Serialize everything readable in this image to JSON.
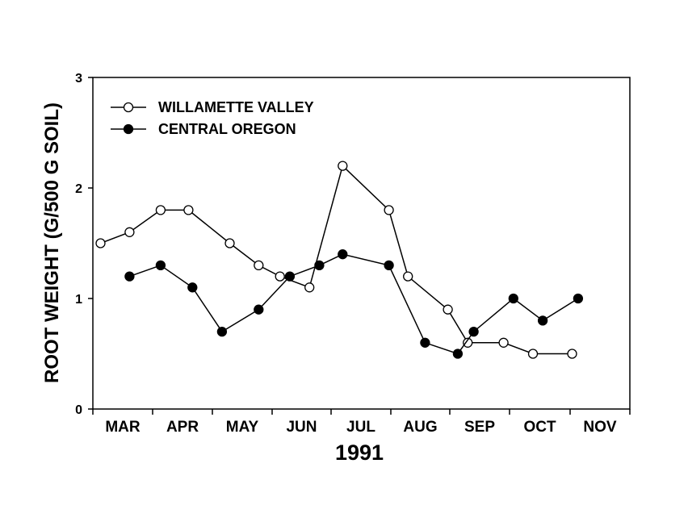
{
  "chart_data": {
    "type": "line",
    "title": "",
    "xlabel": "1991",
    "ylabel": "ROOT WEIGHT (G/500 G SOIL)",
    "ylim": [
      0,
      3
    ],
    "yticks": [
      0,
      1,
      2,
      3
    ],
    "month_labels": [
      "MAR",
      "APR",
      "MAY",
      "JUN",
      "JUL",
      "AUG",
      "SEP",
      "OCT",
      "NOV"
    ],
    "grid": false,
    "legend_position": "top-left",
    "series": [
      {
        "name": "WILLAMETTE VALLEY",
        "marker": "open-circle",
        "points": [
          {
            "x": "1991-03-05",
            "y": 1.5
          },
          {
            "x": "1991-03-20",
            "y": 1.6
          },
          {
            "x": "1991-04-05",
            "y": 1.8
          },
          {
            "x": "1991-04-19",
            "y": 1.8
          },
          {
            "x": "1991-05-10",
            "y": 1.5
          },
          {
            "x": "1991-05-25",
            "y": 1.3
          },
          {
            "x": "1991-06-05",
            "y": 1.2
          },
          {
            "x": "1991-06-20",
            "y": 1.1
          },
          {
            "x": "1991-07-07",
            "y": 2.2
          },
          {
            "x": "1991-07-31",
            "y": 1.8
          },
          {
            "x": "1991-08-10",
            "y": 1.2
          },
          {
            "x": "1991-08-31",
            "y": 0.9
          },
          {
            "x": "1991-09-10",
            "y": 0.6
          },
          {
            "x": "1991-09-28",
            "y": 0.6
          },
          {
            "x": "1991-10-13",
            "y": 0.5
          },
          {
            "x": "1991-11-02",
            "y": 0.5
          }
        ]
      },
      {
        "name": "CENTRAL OREGON",
        "marker": "filled-circle",
        "points": [
          {
            "x": "1991-03-20",
            "y": 1.2
          },
          {
            "x": "1991-04-05",
            "y": 1.3
          },
          {
            "x": "1991-04-21",
            "y": 1.1
          },
          {
            "x": "1991-05-06",
            "y": 0.7
          },
          {
            "x": "1991-05-25",
            "y": 0.9
          },
          {
            "x": "1991-06-10",
            "y": 1.2
          },
          {
            "x": "1991-06-25",
            "y": 1.3
          },
          {
            "x": "1991-07-07",
            "y": 1.4
          },
          {
            "x": "1991-07-31",
            "y": 1.3
          },
          {
            "x": "1991-08-19",
            "y": 0.6
          },
          {
            "x": "1991-09-05",
            "y": 0.5
          },
          {
            "x": "1991-09-13",
            "y": 0.7
          },
          {
            "x": "1991-10-03",
            "y": 1.0
          },
          {
            "x": "1991-10-18",
            "y": 0.8
          },
          {
            "x": "1991-11-05",
            "y": 1.0
          }
        ]
      }
    ]
  }
}
